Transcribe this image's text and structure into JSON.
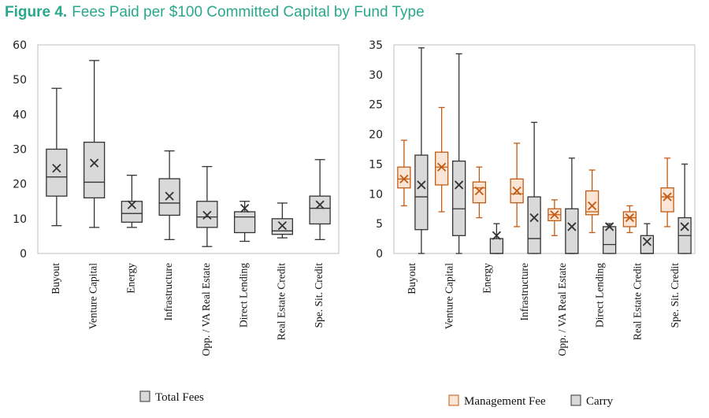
{
  "figure": {
    "label": "Figure 4.",
    "title": "Fees Paid per $100 Committed Capital by Fund Type"
  },
  "chart_data": [
    {
      "type": "box",
      "ylim": [
        0,
        60
      ],
      "yticks": [
        0,
        10,
        20,
        30,
        40,
        50,
        60
      ],
      "categories": [
        "Buyout",
        "Venture Capital",
        "Energy",
        "Infrastructure",
        "Opp. / VA Real Estate",
        "Direct Lending",
        "Real Estate Credit",
        "Spe. Sit. Credit"
      ],
      "legend_position": "bottom",
      "series": [
        {
          "name": "Total Fees",
          "color": "#d9d9d9",
          "edge": "#333333",
          "boxes": [
            {
              "min": 8,
              "q1": 16.5,
              "median": 22,
              "q3": 30,
              "max": 47.5,
              "mean": 24.5
            },
            {
              "min": 7.5,
              "q1": 16,
              "median": 20.5,
              "q3": 32,
              "max": 55.5,
              "mean": 26
            },
            {
              "min": 7.5,
              "q1": 9,
              "median": 11.5,
              "q3": 15,
              "max": 22.5,
              "mean": 14
            },
            {
              "min": 4,
              "q1": 11,
              "median": 14.5,
              "q3": 21.5,
              "max": 29.5,
              "mean": 16.5
            },
            {
              "min": 2,
              "q1": 7.5,
              "median": 10.5,
              "q3": 15,
              "max": 25,
              "mean": 11
            },
            {
              "min": 3.5,
              "q1": 6,
              "median": 10.5,
              "q3": 12,
              "max": 15,
              "mean": 13
            },
            {
              "min": 4.5,
              "q1": 5.5,
              "median": 6.5,
              "q3": 10,
              "max": 14.5,
              "mean": 8
            },
            {
              "min": 4,
              "q1": 8.5,
              "median": 13,
              "q3": 16.5,
              "max": 27,
              "mean": 14
            }
          ]
        }
      ]
    },
    {
      "type": "box",
      "ylim": [
        0,
        35
      ],
      "yticks": [
        0,
        5,
        10,
        15,
        20,
        25,
        30,
        35
      ],
      "categories": [
        "Buyout",
        "Venture Capital",
        "Energy",
        "Infrastructure",
        "Opp. / VA Real Estate",
        "Direct Lending",
        "Real Estate Credit",
        "Spe. Sit. Credit"
      ],
      "legend_position": "bottom",
      "series": [
        {
          "name": "Management Fee",
          "color": "#fbe5d6",
          "edge": "#c55a11",
          "boxes": [
            {
              "min": 8,
              "q1": 11,
              "median": 12.5,
              "q3": 14.5,
              "max": 19,
              "mean": 12.5
            },
            {
              "min": 7,
              "q1": 11.5,
              "median": 14.5,
              "q3": 17,
              "max": 24.5,
              "mean": 14.5
            },
            {
              "min": 6,
              "q1": 8.5,
              "median": 11,
              "q3": 12,
              "max": 14.5,
              "mean": 10.5
            },
            {
              "min": 4.5,
              "q1": 8.5,
              "median": 10,
              "q3": 12.5,
              "max": 18.5,
              "mean": 10.5
            },
            {
              "min": 3,
              "q1": 5.5,
              "median": 6.5,
              "q3": 7.5,
              "max": 9,
              "mean": 6.5
            },
            {
              "min": 3.5,
              "q1": 6.5,
              "median": 7,
              "q3": 10.5,
              "max": 14,
              "mean": 8
            },
            {
              "min": 3.5,
              "q1": 4.5,
              "median": 6,
              "q3": 7,
              "max": 8,
              "mean": 6
            },
            {
              "min": 4.5,
              "q1": 7,
              "median": 9.5,
              "q3": 11,
              "max": 16,
              "mean": 9.5
            }
          ]
        },
        {
          "name": "Carry",
          "color": "#d9d9d9",
          "edge": "#333333",
          "boxes": [
            {
              "min": 0,
              "q1": 4,
              "median": 9.5,
              "q3": 16.5,
              "max": 34.5,
              "mean": 11.5
            },
            {
              "min": 0,
              "q1": 3,
              "median": 7.5,
              "q3": 15.5,
              "max": 33.5,
              "mean": 11.5
            },
            {
              "min": 0,
              "q1": 0,
              "median": 0,
              "q3": 2.5,
              "max": 5,
              "mean": 3
            },
            {
              "min": 0,
              "q1": 0,
              "median": 2.5,
              "q3": 9.5,
              "max": 22,
              "mean": 6
            },
            {
              "min": 0,
              "q1": 0,
              "median": 0,
              "q3": 7.5,
              "max": 16,
              "mean": 4.5
            },
            {
              "min": 0,
              "q1": 0,
              "median": 1.5,
              "q3": 4.5,
              "max": 5,
              "mean": 4.5
            },
            {
              "min": 0,
              "q1": 0,
              "median": 0,
              "q3": 3,
              "max": 5,
              "mean": 2
            },
            {
              "min": 0,
              "q1": 0,
              "median": 3,
              "q3": 6,
              "max": 15,
              "mean": 4.5
            }
          ]
        }
      ]
    }
  ]
}
